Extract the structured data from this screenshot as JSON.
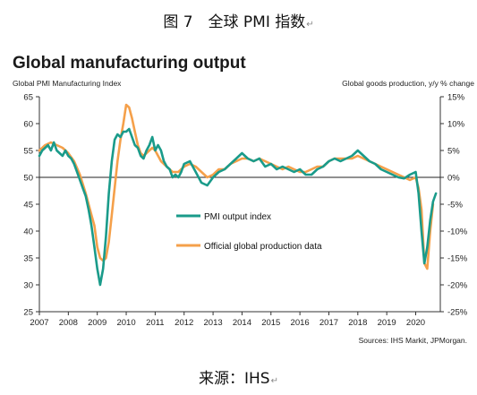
{
  "figure_caption": "图 7　全球 PMI 指数",
  "source_caption": "来源：IHS",
  "paragraph_mark": "↵",
  "chart_data": {
    "type": "line",
    "title": "Global manufacturing output",
    "left_axis_label": "Global PMI Manufacturing Index",
    "right_axis_label": "Global goods production, y/y % change",
    "source_note": "Sources: IHS Markit, JPMorgan.",
    "x_ticks": [
      "2007",
      "2008",
      "2009",
      "2010",
      "2011",
      "2012",
      "2013",
      "2014",
      "2015",
      "2016",
      "2017",
      "2018",
      "2019",
      "2020"
    ],
    "xlim": [
      2007,
      2020.85
    ],
    "left_ylim": [
      25,
      65
    ],
    "left_ticks": [
      "65",
      "60",
      "55",
      "50",
      "45",
      "40",
      "35",
      "30",
      "25"
    ],
    "right_ylim": [
      -25,
      15
    ],
    "right_ticks": [
      "15%",
      "10%",
      "5%",
      "0%",
      "-5%",
      "-10%",
      "-15%",
      "-20%",
      "-25%"
    ],
    "reference_line": 50,
    "grid": false,
    "legend_position": "center",
    "colors": {
      "pmi": "#1a9b8a",
      "production": "#f5a04a",
      "axis": "#333333"
    },
    "series": [
      {
        "name": "PMI output index",
        "axis": "left",
        "x": [
          2007.0,
          2007.1,
          2007.2,
          2007.3,
          2007.4,
          2007.5,
          2007.6,
          2007.7,
          2007.8,
          2007.9,
          2008.0,
          2008.1,
          2008.2,
          2008.3,
          2008.4,
          2008.5,
          2008.6,
          2008.7,
          2008.8,
          2008.9,
          2009.0,
          2009.1,
          2009.2,
          2009.3,
          2009.4,
          2009.5,
          2009.6,
          2009.7,
          2009.8,
          2009.9,
          2010.0,
          2010.1,
          2010.2,
          2010.3,
          2010.4,
          2010.5,
          2010.6,
          2010.7,
          2010.8,
          2010.9,
          2011.0,
          2011.1,
          2011.2,
          2011.3,
          2011.4,
          2011.5,
          2011.6,
          2011.7,
          2011.8,
          2011.9,
          2012.0,
          2012.2,
          2012.4,
          2012.6,
          2012.8,
          2013.0,
          2013.2,
          2013.4,
          2013.6,
          2013.8,
          2014.0,
          2014.2,
          2014.4,
          2014.6,
          2014.8,
          2015.0,
          2015.2,
          2015.4,
          2015.6,
          2015.8,
          2016.0,
          2016.2,
          2016.4,
          2016.6,
          2016.8,
          2017.0,
          2017.2,
          2017.4,
          2017.6,
          2017.8,
          2018.0,
          2018.2,
          2018.4,
          2018.6,
          2018.8,
          2019.0,
          2019.2,
          2019.4,
          2019.6,
          2019.8,
          2020.0,
          2020.1,
          2020.2,
          2020.3,
          2020.4,
          2020.5,
          2020.6,
          2020.7
        ],
        "values": [
          54.0,
          55.0,
          55.5,
          56.0,
          55.0,
          56.5,
          55.0,
          54.5,
          54.0,
          55.0,
          54.0,
          53.5,
          52.5,
          51.0,
          49.5,
          48.0,
          46.5,
          44.0,
          41.0,
          37.0,
          33.0,
          30.0,
          33.0,
          39.0,
          47.0,
          53.0,
          57.0,
          58.0,
          57.5,
          58.5,
          58.5,
          59.0,
          57.5,
          56.0,
          55.5,
          54.0,
          53.5,
          55.0,
          56.0,
          57.5,
          55.0,
          56.0,
          55.0,
          53.0,
          52.0,
          51.5,
          50.0,
          50.5,
          50.0,
          51.0,
          52.5,
          53.0,
          51.0,
          49.0,
          48.5,
          50.0,
          51.0,
          51.5,
          52.5,
          53.5,
          54.5,
          53.5,
          53.0,
          53.5,
          52.0,
          52.5,
          51.5,
          52.0,
          51.5,
          51.0,
          51.5,
          50.5,
          50.5,
          51.5,
          52.0,
          53.0,
          53.5,
          53.0,
          53.5,
          54.0,
          55.0,
          54.0,
          53.0,
          52.5,
          51.5,
          51.0,
          50.5,
          50.0,
          49.8,
          50.5,
          51.0,
          47.0,
          40.0,
          34.0,
          37.0,
          42.0,
          45.5,
          47.0
        ]
      },
      {
        "name": "Official global production data",
        "axis": "right",
        "x": [
          2007.0,
          2007.2,
          2007.4,
          2007.6,
          2007.8,
          2008.0,
          2008.2,
          2008.4,
          2008.6,
          2008.8,
          2008.9,
          2009.0,
          2009.1,
          2009.2,
          2009.3,
          2009.4,
          2009.5,
          2009.6,
          2009.7,
          2009.8,
          2009.9,
          2010.0,
          2010.1,
          2010.2,
          2010.3,
          2010.4,
          2010.5,
          2010.6,
          2010.7,
          2010.8,
          2010.9,
          2011.0,
          2011.2,
          2011.4,
          2011.6,
          2011.8,
          2012.0,
          2012.2,
          2012.4,
          2012.6,
          2012.8,
          2013.0,
          2013.2,
          2013.4,
          2013.6,
          2013.8,
          2014.0,
          2014.2,
          2014.4,
          2014.6,
          2014.8,
          2015.0,
          2015.2,
          2015.4,
          2015.6,
          2015.8,
          2016.0,
          2016.2,
          2016.4,
          2016.6,
          2016.8,
          2017.0,
          2017.2,
          2017.4,
          2017.6,
          2017.8,
          2018.0,
          2018.2,
          2018.4,
          2018.6,
          2018.8,
          2019.0,
          2019.2,
          2019.4,
          2019.6,
          2019.8,
          2020.0,
          2020.1,
          2020.2,
          2020.3,
          2020.4,
          2020.5,
          2020.6
        ],
        "values": [
          5.0,
          6.0,
          6.5,
          6.0,
          5.5,
          4.5,
          3.0,
          0.5,
          -3.0,
          -7.0,
          -9.0,
          -13.0,
          -15.0,
          -15.5,
          -15.0,
          -12.0,
          -7.0,
          -2.0,
          3.0,
          7.0,
          10.0,
          13.5,
          13.0,
          11.0,
          8.5,
          6.0,
          4.5,
          4.0,
          4.5,
          5.0,
          5.5,
          5.0,
          3.0,
          2.0,
          1.0,
          1.0,
          2.0,
          2.5,
          2.0,
          1.0,
          0.0,
          0.5,
          1.5,
          1.5,
          2.5,
          3.0,
          3.5,
          3.5,
          3.0,
          3.5,
          3.0,
          2.5,
          2.0,
          1.5,
          2.0,
          1.5,
          1.0,
          1.0,
          1.5,
          2.0,
          2.0,
          3.0,
          3.5,
          3.5,
          3.5,
          3.5,
          4.0,
          3.5,
          3.0,
          2.5,
          2.0,
          1.5,
          1.0,
          0.5,
          0.0,
          -0.5,
          0.0,
          -2.0,
          -6.0,
          -16.0,
          -17.0,
          -10.0,
          -5.0
        ]
      }
    ]
  }
}
